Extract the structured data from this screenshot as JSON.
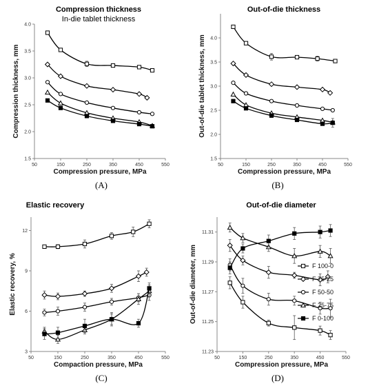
{
  "legend": {
    "entries": [
      {
        "name": "F 100-0",
        "marker": "square-open"
      },
      {
        "name": "F 75-25",
        "marker": "diamond-open"
      },
      {
        "name": "F 50-50",
        "marker": "circle-open"
      },
      {
        "name": "F 25-75",
        "marker": "triangle-open"
      },
      {
        "name": "F 0-100",
        "marker": "square-filled"
      }
    ]
  },
  "chart_data": [
    {
      "panel": "A",
      "type": "line",
      "letter": "(A)",
      "title": "Compression thickness",
      "subtitle": "In-die tablet thickness",
      "xlabel": "Compression pressure, MPa",
      "ylabel": "Compression thickness, mm",
      "xlim": [
        50,
        550
      ],
      "ylim": [
        1.5,
        4.0
      ],
      "xticks": [
        50,
        150,
        250,
        350,
        450,
        550
      ],
      "yticks": [
        1.5,
        2.0,
        2.5,
        3.0,
        3.5,
        4.0
      ],
      "tick_decimals": 1,
      "series": [
        {
          "marker": "square-open",
          "x": [
            100,
            150,
            250,
            350,
            450,
            500
          ],
          "y": [
            3.84,
            3.52,
            3.26,
            3.23,
            3.2,
            3.14
          ],
          "err": [
            0,
            0,
            0.05,
            0,
            0.03,
            0
          ]
        },
        {
          "marker": "diamond-open",
          "x": [
            100,
            150,
            250,
            350,
            450,
            480
          ],
          "y": [
            3.25,
            3.03,
            2.85,
            2.78,
            2.7,
            2.63
          ],
          "err": [
            0,
            0,
            0,
            0,
            0,
            0
          ]
        },
        {
          "marker": "circle-open",
          "x": [
            100,
            150,
            250,
            350,
            450,
            500
          ],
          "y": [
            2.92,
            2.7,
            2.54,
            2.44,
            2.36,
            2.33
          ],
          "err": [
            0,
            0,
            0,
            0,
            0,
            0
          ]
        },
        {
          "marker": "triangle-open",
          "x": [
            100,
            150,
            250,
            350,
            450,
            500
          ],
          "y": [
            2.73,
            2.53,
            2.35,
            2.25,
            2.18,
            2.11
          ],
          "err": [
            0,
            0,
            0,
            0,
            0,
            0
          ]
        },
        {
          "marker": "square-filled",
          "x": [
            100,
            150,
            250,
            350,
            450,
            500
          ],
          "y": [
            2.58,
            2.44,
            2.29,
            2.2,
            2.14,
            2.1
          ],
          "err": [
            0,
            0,
            0,
            0,
            0,
            0
          ]
        }
      ]
    },
    {
      "panel": "B",
      "type": "line",
      "letter": "(B)",
      "title": "Out-of-die thickness",
      "subtitle": "",
      "xlabel": "Compression pressure, MPa",
      "ylabel": "Out-of-die tablet thickness, mm",
      "xlim": [
        50,
        550
      ],
      "ylim": [
        1.5,
        4.5
      ],
      "xticks": [
        50,
        150,
        250,
        350,
        450,
        550
      ],
      "yticks": [
        1.5,
        2.0,
        2.5,
        3.0,
        3.5,
        4.0
      ],
      "tick_decimals": 1,
      "series": [
        {
          "marker": "square-open",
          "x": [
            100,
            150,
            250,
            350,
            430,
            500
          ],
          "y": [
            4.23,
            3.89,
            3.61,
            3.6,
            3.57,
            3.52
          ],
          "err": [
            0,
            0,
            0.07,
            0,
            0.05,
            0
          ]
        },
        {
          "marker": "diamond-open",
          "x": [
            100,
            150,
            250,
            350,
            450,
            480
          ],
          "y": [
            3.47,
            3.23,
            3.04,
            2.98,
            2.93,
            2.86
          ],
          "err": [
            0,
            0,
            0,
            0,
            0,
            0
          ]
        },
        {
          "marker": "circle-open",
          "x": [
            100,
            150,
            250,
            350,
            450,
            490
          ],
          "y": [
            3.07,
            2.85,
            2.69,
            2.6,
            2.53,
            2.5
          ],
          "err": [
            0,
            0,
            0,
            0,
            0,
            0
          ]
        },
        {
          "marker": "triangle-open",
          "x": [
            100,
            150,
            250,
            350,
            450,
            490
          ],
          "y": [
            2.83,
            2.61,
            2.44,
            2.36,
            2.29,
            2.25
          ],
          "err": [
            0,
            0,
            0,
            0,
            0,
            0
          ]
        },
        {
          "marker": "square-filled",
          "x": [
            100,
            150,
            250,
            350,
            450,
            490
          ],
          "y": [
            2.69,
            2.54,
            2.39,
            2.3,
            2.22,
            2.24
          ],
          "err": [
            0,
            0,
            0.04,
            0,
            0,
            0.09
          ]
        }
      ]
    },
    {
      "panel": "C",
      "type": "line",
      "letter": "(C)",
      "title": "Elastic recovery",
      "subtitle": "",
      "xlabel": "Compaction pressure, MPa",
      "ylabel": "Elastic recovery, %",
      "xlim": [
        50,
        550
      ],
      "ylim": [
        3,
        13
      ],
      "xticks": [
        50,
        150,
        250,
        350,
        450,
        550
      ],
      "yticks": [
        3,
        6,
        9,
        12
      ],
      "tick_decimals": 0,
      "series": [
        {
          "marker": "square-open",
          "x": [
            100,
            150,
            250,
            350,
            430,
            490
          ],
          "y": [
            10.8,
            10.8,
            11.0,
            11.6,
            11.9,
            12.5
          ],
          "err": [
            0,
            0.15,
            0.3,
            0.25,
            0.35,
            0.3
          ]
        },
        {
          "marker": "diamond-open",
          "x": [
            100,
            150,
            250,
            350,
            450,
            480
          ],
          "y": [
            7.2,
            7.1,
            7.3,
            7.7,
            8.6,
            8.9
          ],
          "err": [
            0.3,
            0.25,
            0.2,
            0.3,
            0.4,
            0.3
          ]
        },
        {
          "marker": "circle-open",
          "x": [
            100,
            150,
            250,
            350,
            450,
            490
          ],
          "y": [
            5.9,
            6.0,
            6.3,
            6.7,
            7.0,
            7.2
          ],
          "err": [
            0.25,
            0.3,
            0.3,
            0.25,
            0.3,
            0.4
          ]
        },
        {
          "marker": "triangle-open",
          "x": [
            100,
            150,
            250,
            350,
            450,
            490
          ],
          "y": [
            4.5,
            3.9,
            4.6,
            5.4,
            6.9,
            7.5
          ],
          "err": [
            0.3,
            0.3,
            0.3,
            0.4,
            0.4,
            0.45
          ]
        },
        {
          "marker": "square-filled",
          "x": [
            100,
            150,
            250,
            350,
            450,
            490
          ],
          "y": [
            4.3,
            4.4,
            4.9,
            5.4,
            5.1,
            7.7
          ],
          "err": [
            0.4,
            0.4,
            0.5,
            0.5,
            0.3,
            0.4
          ]
        }
      ]
    },
    {
      "panel": "D",
      "type": "line",
      "letter": "(D)",
      "title": "Out-of-die diameter",
      "subtitle": "",
      "xlabel": "Compression pressure, MPa",
      "ylabel": "Out-of-die diameter, mm",
      "xlim": [
        50,
        550
      ],
      "ylim": [
        11.23,
        11.32
      ],
      "xticks": [
        50,
        150,
        250,
        350,
        450,
        550
      ],
      "yticks": [
        11.23,
        11.25,
        11.27,
        11.29,
        11.31
      ],
      "tick_decimals": 2,
      "series": [
        {
          "marker": "square-open",
          "x": [
            100,
            150,
            250,
            350,
            450,
            490
          ],
          "y": [
            11.276,
            11.263,
            11.249,
            11.246,
            11.244,
            11.241
          ],
          "err": [
            0.004,
            0.004,
            0.002,
            0.008,
            0.003,
            0.003
          ]
        },
        {
          "marker": "diamond-open",
          "x": [
            100,
            150,
            250,
            350,
            450,
            480
          ],
          "y": [
            11.301,
            11.291,
            11.283,
            11.281,
            11.278,
            11.28
          ],
          "err": [
            0.004,
            0.003,
            0.004,
            0.002,
            0.004,
            0.004
          ]
        },
        {
          "marker": "circle-open",
          "x": [
            100,
            150,
            250,
            350,
            450,
            490
          ],
          "y": [
            11.288,
            11.274,
            11.265,
            11.264,
            11.259,
            11.259
          ],
          "err": [
            0.004,
            0.005,
            0.004,
            0.003,
            0.004,
            0.006
          ]
        },
        {
          "marker": "triangle-open",
          "x": [
            100,
            150,
            250,
            350,
            450,
            490
          ],
          "y": [
            11.313,
            11.306,
            11.3,
            11.294,
            11.297,
            11.294
          ],
          "err": [
            0.003,
            0.003,
            0.003,
            0.005,
            0.004,
            0.005
          ]
        },
        {
          "marker": "square-filled",
          "x": [
            100,
            150,
            250,
            350,
            450,
            490
          ],
          "y": [
            11.286,
            11.299,
            11.304,
            11.309,
            11.31,
            11.311
          ],
          "err": [
            0.004,
            0.003,
            0.004,
            0.004,
            0.004,
            0.004
          ]
        }
      ]
    }
  ]
}
